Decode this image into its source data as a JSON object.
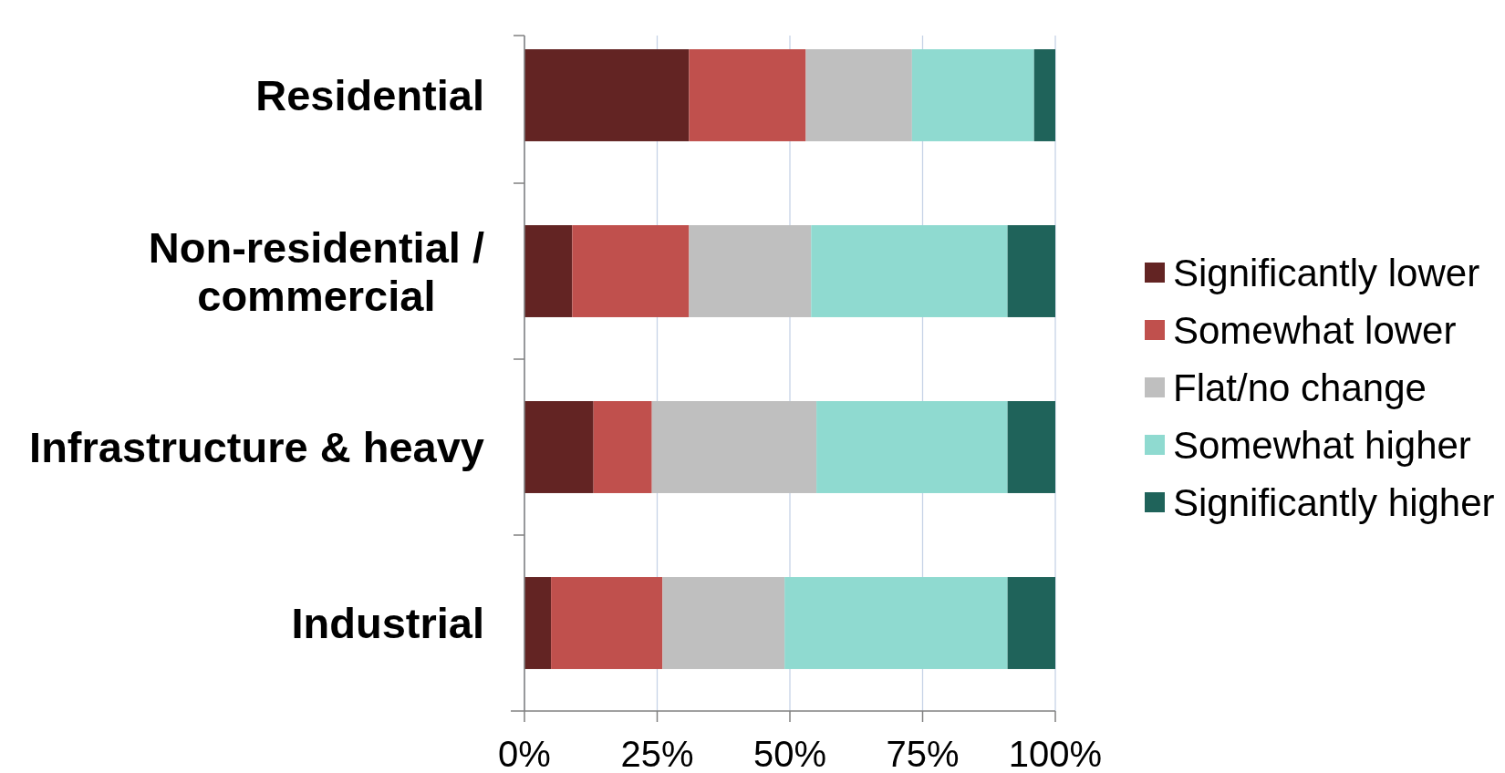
{
  "chart_data": {
    "type": "bar",
    "orientation": "horizontal",
    "stacked": true,
    "categories": [
      "Residential",
      "Non-residential /\ncommercial",
      "Infrastructure & heavy",
      "Industrial"
    ],
    "series": [
      {
        "name": "Significantly lower",
        "color": "#632423",
        "values": [
          31,
          9,
          13,
          5
        ]
      },
      {
        "name": "Somewhat lower",
        "color": "#c0504d",
        "values": [
          22,
          22,
          11,
          21
        ]
      },
      {
        "name": "Flat/no change",
        "color": "#bfbfbf",
        "values": [
          20,
          23,
          31,
          23
        ]
      },
      {
        "name": "Somewhat higher",
        "color": "#8fdad0",
        "values": [
          23,
          37,
          36,
          42
        ]
      },
      {
        "name": "Significantly higher",
        "color": "#1f635a",
        "values": [
          4,
          9,
          9,
          9
        ]
      }
    ],
    "xlim": [
      0,
      100
    ],
    "xticks": [
      {
        "value": 0,
        "label": "0%"
      },
      {
        "value": 25,
        "label": "25%"
      },
      {
        "value": 50,
        "label": "50%"
      },
      {
        "value": 75,
        "label": "75%"
      },
      {
        "value": 100,
        "label": "100%"
      }
    ],
    "grid": "x",
    "legend": "right"
  }
}
